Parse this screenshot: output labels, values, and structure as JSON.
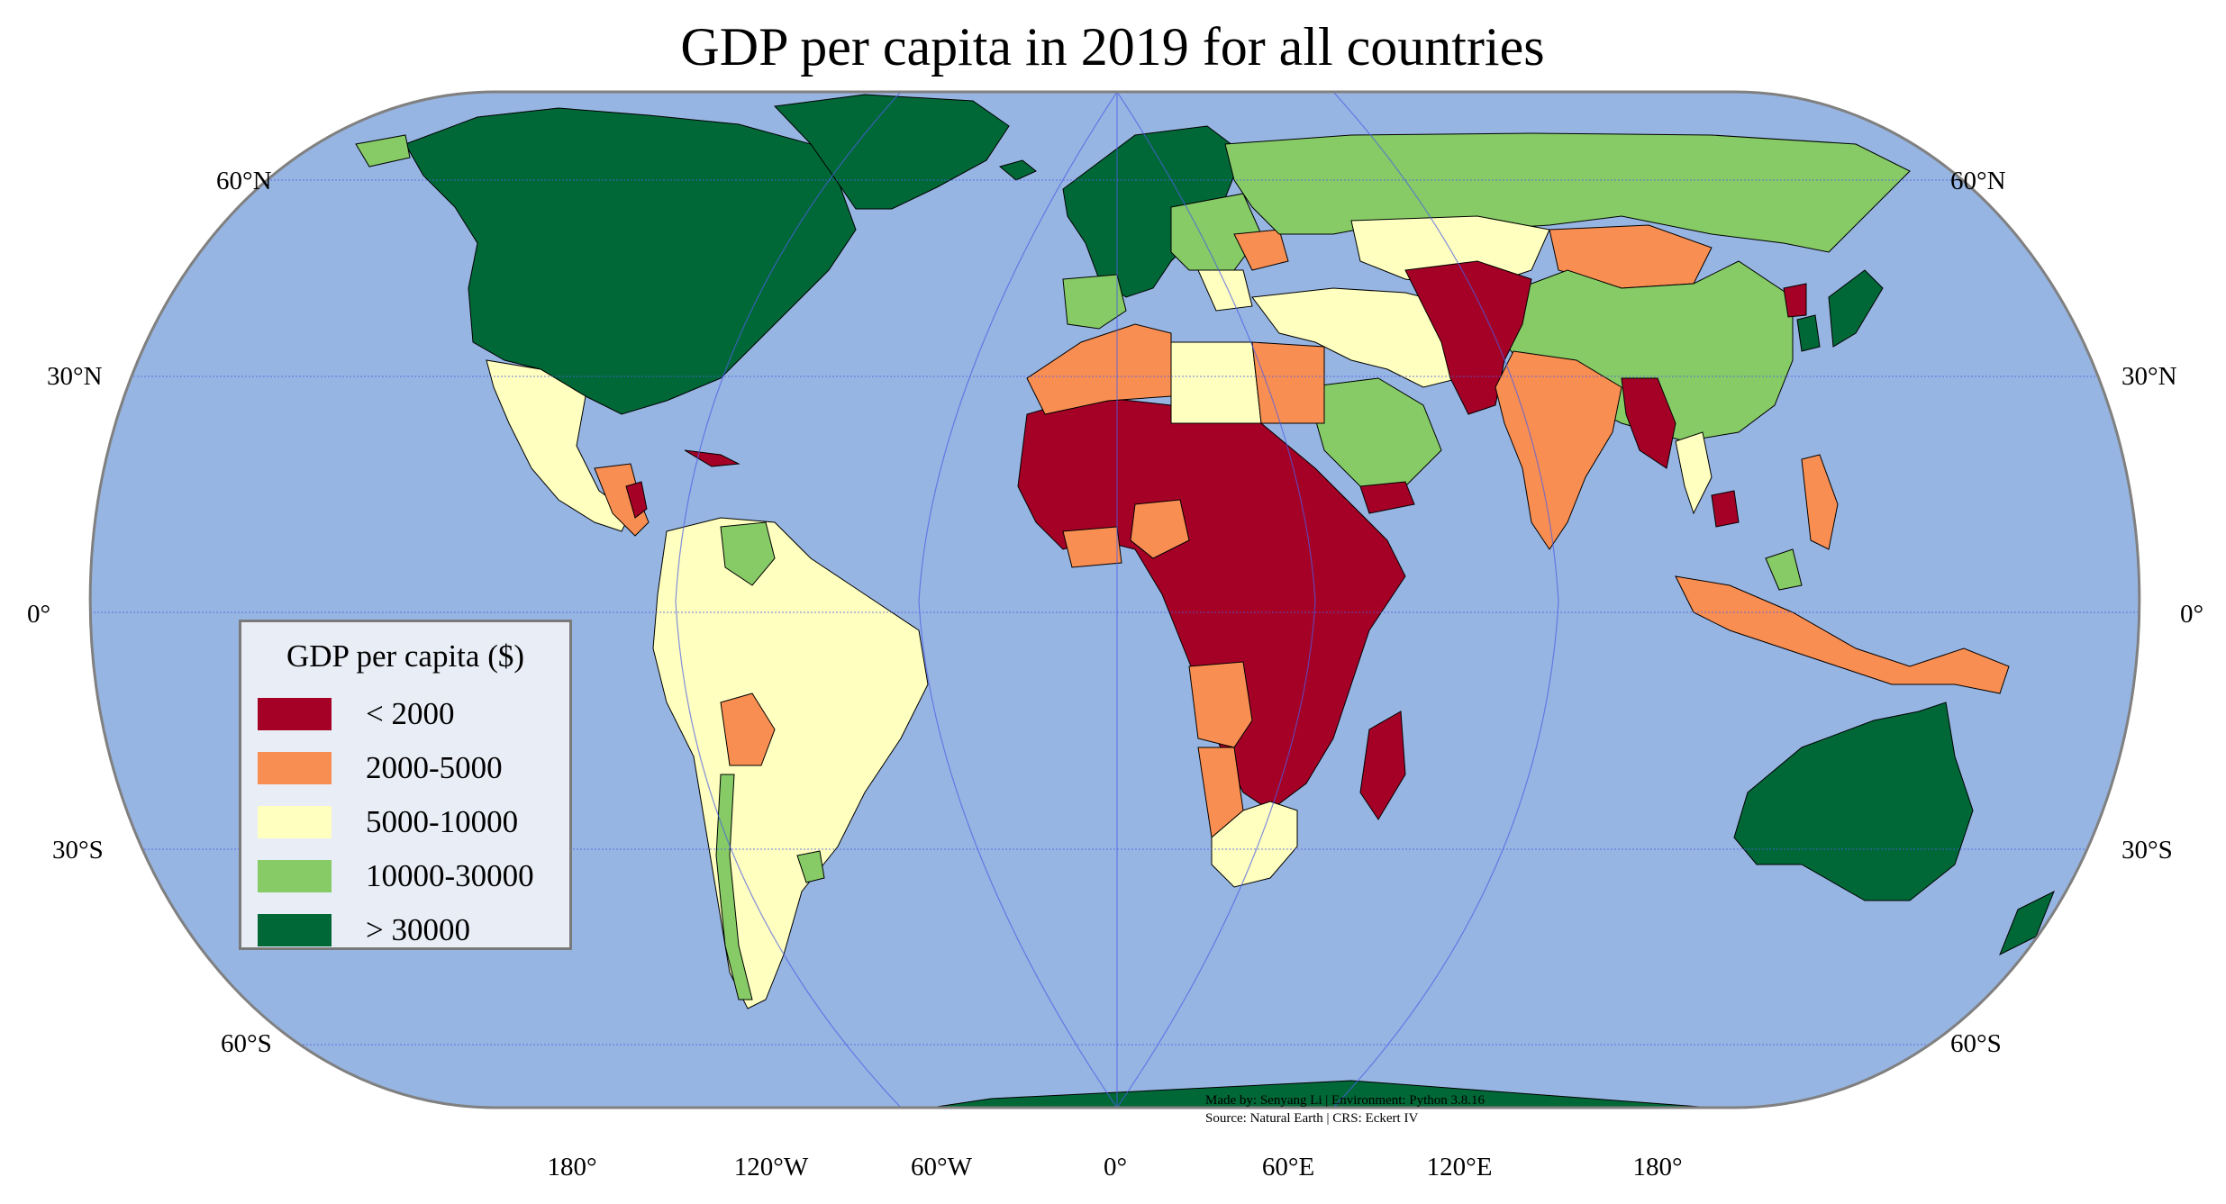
{
  "title": "GDP per capita in 2019 for all countries",
  "colors": {
    "ocean": "#97b5e2",
    "frame": "#808080",
    "graticule": "#4d5ee6",
    "class_1": "#a50026",
    "class_2": "#f98e52",
    "class_3": "#ffffbf",
    "class_4": "#86cb66",
    "class_5": "#006837",
    "lake": "#aac8ee"
  },
  "legend": {
    "title": "GDP per capita ($)",
    "items": [
      {
        "label": "< 2000",
        "color": "#a50026"
      },
      {
        "label": "2000-5000",
        "color": "#f98e52"
      },
      {
        "label": "5000-10000",
        "color": "#ffffbf"
      },
      {
        "label": "10000-30000",
        "color": "#86cb66"
      },
      {
        "label": "> 30000",
        "color": "#006837"
      }
    ]
  },
  "lat_labels": {
    "n60": "60°N",
    "n30": "30°N",
    "eq": "0°",
    "s30": "30°S",
    "s60": "60°S"
  },
  "lon_labels": [
    "180°",
    "120°W",
    "60°W",
    "0°",
    "60°E",
    "120°E",
    "180°"
  ],
  "credits": {
    "line1": "Made by: Senyang Li | Environment: Python 3.8.16",
    "line2": "Source: Natural Earth | CRS: Eckert IV"
  }
}
